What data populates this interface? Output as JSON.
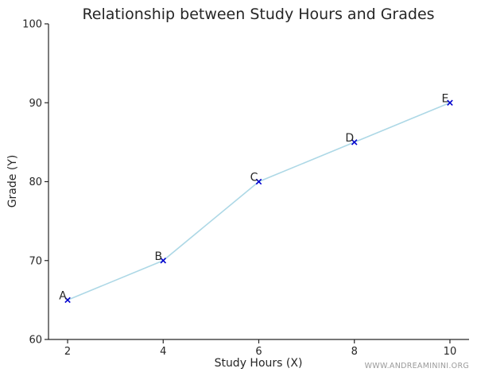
{
  "chart_data": {
    "type": "line",
    "title": "Relationship between Study Hours and Grades",
    "xlabel": "Study Hours (X)",
    "ylabel": "Grade (Y)",
    "xlim": [
      1.6,
      10.4
    ],
    "ylim": [
      60,
      100
    ],
    "x_ticks": [
      2,
      4,
      6,
      8,
      10
    ],
    "y_ticks": [
      60,
      70,
      80,
      90,
      100
    ],
    "grid": false,
    "line_color": "#add8e6",
    "marker_color": "#0000cd",
    "marker": "x",
    "points": [
      {
        "label": "A",
        "x": 2,
        "y": 65
      },
      {
        "label": "B",
        "x": 4,
        "y": 70
      },
      {
        "label": "C",
        "x": 6,
        "y": 80
      },
      {
        "label": "D",
        "x": 8,
        "y": 85
      },
      {
        "label": "E",
        "x": 10,
        "y": 90
      }
    ]
  },
  "watermark": "WWW.ANDREAMININI.ORG"
}
